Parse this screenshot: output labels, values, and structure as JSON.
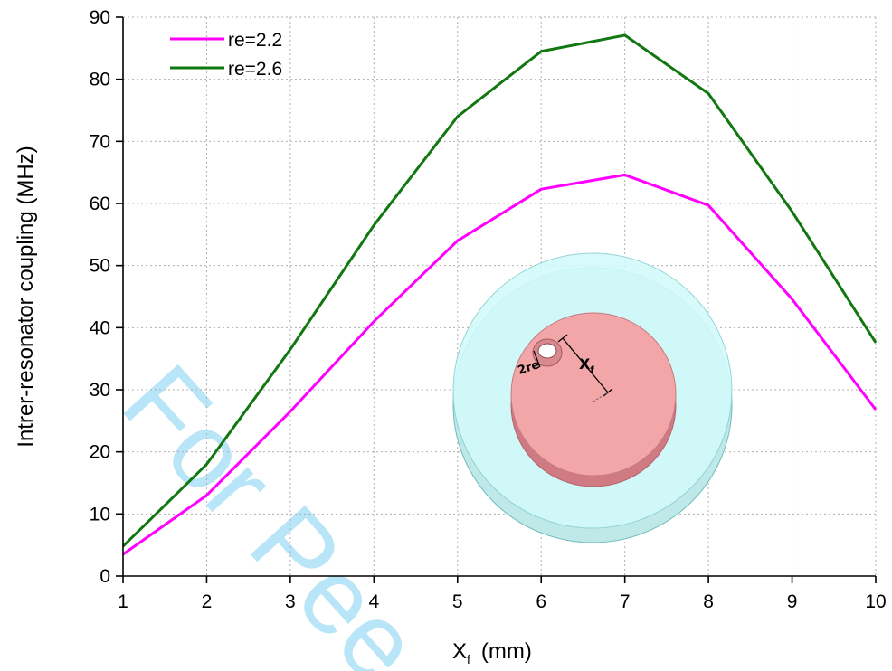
{
  "chart_data": {
    "type": "line",
    "x": [
      1,
      2,
      3,
      4,
      5,
      6,
      7,
      8,
      9,
      10
    ],
    "series": [
      {
        "name": "re=2.2",
        "color": "#ff00ff",
        "values": [
          3.5,
          13,
          26.5,
          41,
          54,
          62.3,
          64.6,
          59.7,
          44.6,
          26.8
        ]
      },
      {
        "name": "re=2.6",
        "color": "#117711",
        "values": [
          4.8,
          18,
          36.5,
          56.5,
          74,
          84.5,
          87.1,
          77.7,
          58.7,
          37.6
        ]
      }
    ],
    "xlabel": "X",
    "xlabel_sub": "f",
    "xlabel_unit": "(mm)",
    "ylabel": "Intrer-resonator coupling  (MHz)",
    "xlim": [
      1,
      10
    ],
    "ylim": [
      0,
      90
    ],
    "xticks": [
      "1",
      "2",
      "3",
      "4",
      "5",
      "6",
      "7",
      "8",
      "9",
      "10"
    ],
    "yticks": [
      "0",
      "10",
      "20",
      "30",
      "40",
      "50",
      "60",
      "70",
      "80",
      "90"
    ],
    "grid": true,
    "legend_position": "top-left"
  },
  "inset": {
    "label_2re": "2re",
    "label_x": "X",
    "label_x_sub": "f"
  },
  "watermark": "For Pee"
}
